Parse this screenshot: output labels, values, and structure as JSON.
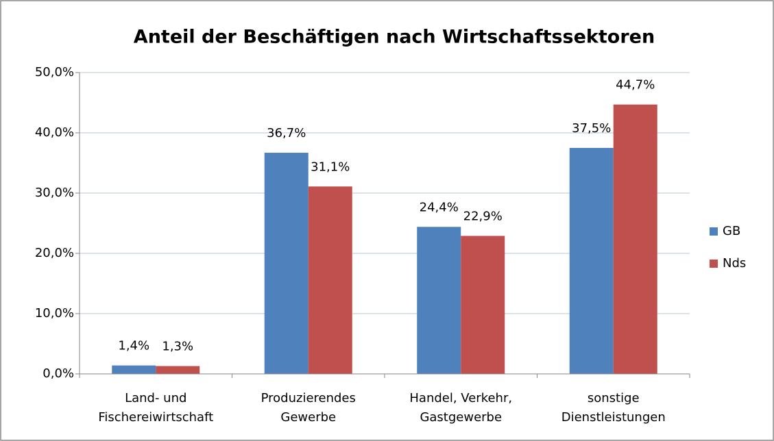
{
  "chart_data": {
    "type": "bar",
    "title": "Anteil der Beschäftigen nach Wirtschaftssektoren",
    "categories": [
      [
        "Land- und",
        "Fischereiwirtschaft"
      ],
      [
        "Produzierendes",
        "Gewerbe"
      ],
      [
        "Handel, Verkehr,",
        "Gastgewerbe"
      ],
      [
        "sonstige",
        "Dienstleistungen"
      ]
    ],
    "series": [
      {
        "name": "GB",
        "color": "#4f81bd",
        "values": [
          1.4,
          36.7,
          24.4,
          37.5
        ],
        "value_labels": [
          "1,4%",
          "36,7%",
          "24,4%",
          "37,5%"
        ]
      },
      {
        "name": "Nds",
        "color": "#c0504d",
        "values": [
          1.3,
          31.1,
          22.9,
          44.7
        ],
        "value_labels": [
          "1,3%",
          "31,1%",
          "22,9%",
          "44,7%"
        ]
      }
    ],
    "ylim": [
      0,
      50
    ],
    "yticks": [
      {
        "value": 0,
        "label": "0,0%"
      },
      {
        "value": 10,
        "label": "10,0%"
      },
      {
        "value": 20,
        "label": "20,0%"
      },
      {
        "value": 30,
        "label": "30,0%"
      },
      {
        "value": 40,
        "label": "40,0%"
      },
      {
        "value": 50,
        "label": "50,0%"
      }
    ],
    "grid": true,
    "legend": "right"
  }
}
